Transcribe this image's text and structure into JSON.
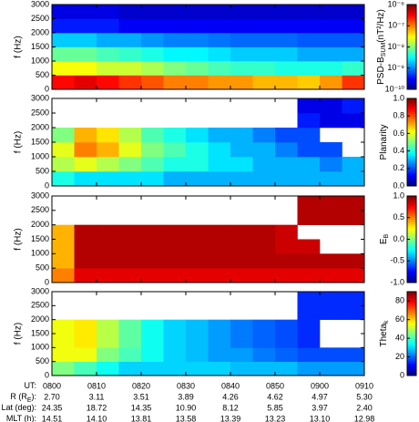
{
  "chart_data": [
    {
      "type": "heatmap",
      "ylabel": "f (Hz)",
      "ylim": [
        0,
        3000
      ],
      "yticks": [
        0,
        500,
        1000,
        1500,
        2000,
        2500,
        3000
      ],
      "colorbar": {
        "label": {
          "text": "PSD-B",
          "sub": "SUM",
          "tail": "(nT²/Hz)"
        },
        "log": true,
        "lim": [
          1e-10,
          1e-06
        ],
        "ticks": [
          {
            "value": 1e-10,
            "label": "10⁻¹⁰"
          },
          {
            "value": 1e-09,
            "label": "10⁻⁹"
          },
          {
            "value": 1e-08,
            "label": "10⁻⁸"
          },
          {
            "value": 1e-07,
            "label": "10⁻⁷"
          },
          {
            "value": 1e-06,
            "label": "10⁻⁶"
          }
        ]
      },
      "z": [
        [
          3e-07,
          4e-07,
          3e-07,
          2e-07,
          1.5e-07,
          1e-07,
          1e-07,
          8e-08,
          8e-08,
          6e-08,
          6e-08,
          5e-08,
          8e-08,
          2e-07
        ],
        [
          3e-08,
          3e-08,
          2e-08,
          2e-08,
          1.5e-08,
          1e-08,
          8e-09,
          6e-09,
          5e-09,
          5e-09,
          4e-09,
          4e-09,
          4e-09,
          5e-09
        ],
        [
          8e-09,
          8e-09,
          6e-09,
          5e-09,
          4e-09,
          3e-09,
          3e-09,
          2.5e-09,
          2e-09,
          2e-09,
          2e-09,
          1.5e-09,
          1.5e-09,
          1.5e-09
        ],
        [
          2e-09,
          2e-09,
          1.5e-09,
          1.5e-09,
          1.2e-09,
          1e-09,
          1e-09,
          9e-10,
          8e-10,
          8e-10,
          8e-10,
          7e-10,
          7e-10,
          7e-10
        ],
        [
          4e-10,
          4e-10,
          4e-10,
          3e-10,
          3e-10,
          3e-10,
          3e-10,
          3e-10,
          3e-10,
          3e-10,
          3e-10,
          3e-10,
          3e-10,
          3e-10
        ],
        [
          2.5e-10,
          2.5e-10,
          2.5e-10,
          2e-10,
          2e-10,
          2e-10,
          2e-10,
          2e-10,
          2e-10,
          2e-10,
          2e-10,
          2e-10,
          2e-10,
          2e-10
        ]
      ]
    },
    {
      "type": "heatmap",
      "ylabel": "f (Hz)",
      "ylim": [
        0,
        3000
      ],
      "yticks": [
        0,
        500,
        1000,
        1500,
        2000,
        2500,
        3000
      ],
      "colorbar": {
        "label": {
          "text": "Planarity"
        },
        "log": false,
        "lim": [
          0,
          1
        ],
        "ticks": [
          {
            "value": 0,
            "label": "0.0"
          },
          0.2,
          0.4,
          0.6,
          0.8,
          {
            "value": 1,
            "label": "1.0"
          }
        ]
      },
      "z": [
        [
          0.4,
          0.35,
          0.35,
          0.35,
          0.35,
          0.3,
          0.3,
          0.3,
          0.3,
          0.3,
          0.3,
          0.3,
          0.3,
          0.3
        ],
        [
          0.55,
          0.6,
          0.55,
          0.5,
          0.45,
          0.4,
          0.4,
          0.35,
          0.35,
          0.3,
          0.3,
          0.3,
          0.25,
          0.3
        ],
        [
          0.6,
          0.75,
          0.7,
          0.6,
          0.5,
          0.45,
          0.4,
          0.35,
          0.3,
          0.3,
          0.25,
          0.2,
          0.2,
          null
        ],
        [
          0.5,
          0.7,
          0.65,
          0.55,
          0.45,
          0.4,
          0.35,
          0.3,
          0.3,
          0.25,
          0.2,
          0.2,
          null,
          null
        ],
        [
          null,
          null,
          null,
          null,
          null,
          null,
          null,
          null,
          null,
          null,
          null,
          0.15,
          0.1,
          0.1
        ],
        [
          null,
          null,
          null,
          null,
          null,
          null,
          null,
          null,
          null,
          null,
          null,
          0.1,
          0.1,
          0.15
        ]
      ]
    },
    {
      "type": "heatmap",
      "ylabel": "f (Hz)",
      "ylim": [
        0,
        3000
      ],
      "yticks": [
        0,
        500,
        1000,
        1500,
        2000,
        2500,
        3000
      ],
      "colorbar": {
        "label": {
          "text": "E",
          "sub": "B"
        },
        "log": false,
        "lim": [
          -1,
          1
        ],
        "ticks": [
          {
            "value": -1,
            "label": "-1.0"
          },
          -0.5,
          {
            "value": 0,
            "label": "0.0"
          },
          0.5,
          {
            "value": 1,
            "label": "1.0"
          }
        ]
      },
      "z": [
        [
          0.5,
          0.8,
          0.8,
          0.8,
          0.8,
          0.8,
          0.8,
          0.8,
          0.8,
          0.8,
          0.8,
          0.8,
          0.8,
          0.8
        ],
        [
          0.4,
          0.9,
          0.9,
          0.9,
          0.9,
          0.9,
          0.9,
          0.9,
          0.9,
          0.9,
          0.9,
          0.9,
          0.9,
          0.9
        ],
        [
          0.4,
          0.9,
          0.9,
          0.9,
          0.9,
          0.9,
          0.9,
          0.9,
          0.9,
          0.9,
          0.85,
          0.85,
          null,
          null
        ],
        [
          0.4,
          0.9,
          0.9,
          0.9,
          0.9,
          0.9,
          0.9,
          0.9,
          0.9,
          0.9,
          0.85,
          null,
          null,
          null
        ],
        [
          null,
          null,
          null,
          null,
          null,
          null,
          null,
          null,
          null,
          null,
          null,
          0.9,
          0.9,
          0.9
        ],
        [
          null,
          null,
          null,
          null,
          null,
          null,
          null,
          null,
          null,
          null,
          null,
          0.9,
          0.9,
          0.9
        ]
      ]
    },
    {
      "type": "heatmap",
      "ylabel": "f (Hz)",
      "ylim": [
        0,
        3000
      ],
      "yticks": [
        0,
        500,
        1000,
        1500,
        2000,
        2500,
        3000
      ],
      "colorbar": {
        "label": {
          "text": "Theta",
          "sub": "k"
        },
        "log": false,
        "lim": [
          0,
          90
        ],
        "ticks": [
          0,
          20,
          40,
          60,
          80
        ]
      },
      "z": [
        [
          45,
          40,
          35,
          30,
          30,
          30,
          30,
          30,
          28,
          28,
          28,
          25,
          25,
          25
        ],
        [
          55,
          55,
          45,
          40,
          35,
          30,
          28,
          25,
          25,
          22,
          20,
          18,
          18,
          18
        ],
        [
          55,
          58,
          50,
          42,
          35,
          30,
          28,
          25,
          22,
          20,
          18,
          15,
          null,
          null
        ],
        [
          55,
          58,
          50,
          42,
          35,
          30,
          28,
          25,
          22,
          20,
          18,
          15,
          null,
          null
        ],
        [
          null,
          null,
          null,
          null,
          null,
          null,
          null,
          null,
          null,
          null,
          null,
          15,
          15,
          15
        ],
        [
          null,
          null,
          null,
          null,
          null,
          null,
          null,
          null,
          null,
          null,
          null,
          15,
          15,
          15
        ]
      ]
    }
  ],
  "ephemeris": [
    {
      "label": {
        "text": "UT:"
      },
      "values": [
        "0800",
        "0810",
        "0820",
        "0830",
        "0840",
        "0850",
        "0900",
        "0910"
      ]
    },
    {
      "label": {
        "text": "R (R",
        "sub": "E",
        "tail": "):"
      },
      "values": [
        "2.70",
        "3.11",
        "3.51",
        "3.89",
        "4.26",
        "4.62",
        "4.97",
        "5.30"
      ]
    },
    {
      "label": {
        "text": "Lat (deg):"
      },
      "values": [
        "24.35",
        "18.72",
        "14.35",
        "10.90",
        "8.12",
        "5.85",
        "3.97",
        "2.40"
      ]
    },
    {
      "label": {
        "text": "MLT (h):"
      },
      "values": [
        "14.51",
        "14.10",
        "13.81",
        "13.58",
        "13.39",
        "13.23",
        "13.10",
        "12.98"
      ]
    }
  ]
}
